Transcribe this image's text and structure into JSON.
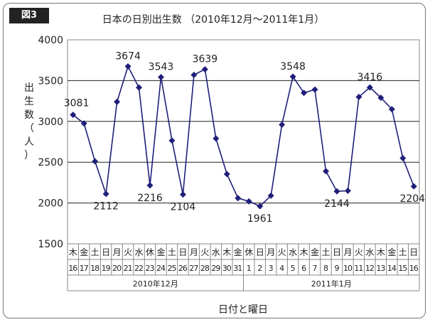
{
  "figure_label": "図3",
  "chart_data": {
    "type": "line",
    "title": "日本の日別出生数 （2010年12月～2011年1月）",
    "ylabel": "出生数（人）",
    "xlabel": "日付と曜日",
    "ylim": [
      1500,
      4000
    ],
    "yticks": [
      1500,
      2000,
      2500,
      3000,
      3500,
      4000
    ],
    "grid": true,
    "month_labels": [
      "2010年12月",
      "2011年1月"
    ],
    "categories": [
      {
        "weekday": "木",
        "day": "16"
      },
      {
        "weekday": "金",
        "day": "17"
      },
      {
        "weekday": "土",
        "day": "18"
      },
      {
        "weekday": "日",
        "day": "19"
      },
      {
        "weekday": "月",
        "day": "20"
      },
      {
        "weekday": "火",
        "day": "21"
      },
      {
        "weekday": "水",
        "day": "22"
      },
      {
        "weekday": "休",
        "day": "23"
      },
      {
        "weekday": "金",
        "day": "24"
      },
      {
        "weekday": "土",
        "day": "25"
      },
      {
        "weekday": "日",
        "day": "26"
      },
      {
        "weekday": "月",
        "day": "27"
      },
      {
        "weekday": "火",
        "day": "28"
      },
      {
        "weekday": "水",
        "day": "29"
      },
      {
        "weekday": "木",
        "day": "30"
      },
      {
        "weekday": "金",
        "day": "31"
      },
      {
        "weekday": "休",
        "day": "1"
      },
      {
        "weekday": "日",
        "day": "2"
      },
      {
        "weekday": "月",
        "day": "3"
      },
      {
        "weekday": "火",
        "day": "4"
      },
      {
        "weekday": "水",
        "day": "5"
      },
      {
        "weekday": "木",
        "day": "6"
      },
      {
        "weekday": "金",
        "day": "7"
      },
      {
        "weekday": "土",
        "day": "8"
      },
      {
        "weekday": "日",
        "day": "9"
      },
      {
        "weekday": "月",
        "day": "10"
      },
      {
        "weekday": "火",
        "day": "11"
      },
      {
        "weekday": "水",
        "day": "12"
      },
      {
        "weekday": "木",
        "day": "13"
      },
      {
        "weekday": "金",
        "day": "14"
      },
      {
        "weekday": "土",
        "day": "15"
      },
      {
        "weekday": "日",
        "day": "16"
      }
    ],
    "values": [
      3081,
      2975,
      2510,
      2112,
      3240,
      3674,
      3415,
      2216,
      3543,
      2765,
      2104,
      3570,
      3639,
      2790,
      2355,
      2060,
      2020,
      1961,
      2090,
      2960,
      3548,
      3350,
      3390,
      2390,
      2144,
      2150,
      3300,
      3416,
      3290,
      3150,
      2550,
      2204
    ],
    "data_labels": [
      {
        "index": 0,
        "text": "3081"
      },
      {
        "index": 3,
        "text": "2112"
      },
      {
        "index": 5,
        "text": "3674"
      },
      {
        "index": 7,
        "text": "2216"
      },
      {
        "index": 8,
        "text": "3543"
      },
      {
        "index": 10,
        "text": "2104"
      },
      {
        "index": 12,
        "text": "3639"
      },
      {
        "index": 17,
        "text": "1961"
      },
      {
        "index": 20,
        "text": "3548"
      },
      {
        "index": 24,
        "text": "2144"
      },
      {
        "index": 27,
        "text": "3416"
      },
      {
        "index": 31,
        "text": "2204"
      }
    ],
    "line_color": "#1f1f7a",
    "marker": "diamond"
  }
}
